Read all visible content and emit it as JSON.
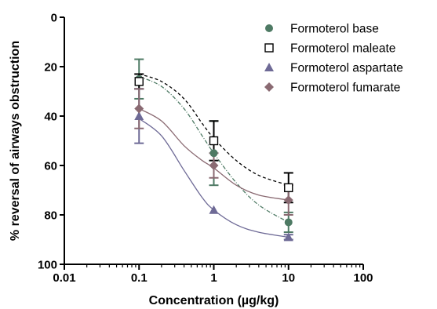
{
  "chart_data": {
    "type": "scatter",
    "title": "",
    "xlabel": "Concentration (µg/kg)",
    "ylabel": "% reversal of airways obstruction",
    "x_scale": "log",
    "xlim": [
      0.01,
      100
    ],
    "ylim": [
      0,
      100
    ],
    "y_inverted": true,
    "x_ticks": [
      "0.01",
      "0.1",
      "1",
      "10",
      "100"
    ],
    "y_ticks": [
      "0",
      "20",
      "40",
      "60",
      "80",
      "100"
    ],
    "legend_position": "top-right",
    "grid": false,
    "series": [
      {
        "name": "Formoterol base",
        "marker": "circle",
        "color": "#4e7a64",
        "line_style": "dash-dot",
        "x": [
          0.1,
          1,
          10
        ],
        "y": [
          25,
          55,
          83
        ],
        "error": [
          8,
          13,
          4
        ],
        "fit_y_at_x": [
          [
            0.1,
            24
          ],
          [
            0.2,
            28
          ],
          [
            0.4,
            37
          ],
          [
            0.7,
            48
          ],
          [
            1,
            55
          ],
          [
            2,
            67
          ],
          [
            4,
            76
          ],
          [
            10,
            83
          ]
        ]
      },
      {
        "name": "Formoterol maleate",
        "marker": "square",
        "color": "#000000",
        "line_style": "dashed",
        "x": [
          0.1,
          1,
          10
        ],
        "y": [
          26,
          50,
          69
        ],
        "error": [
          3,
          8,
          6
        ],
        "fit_y_at_x": [
          [
            0.1,
            23
          ],
          [
            0.2,
            26
          ],
          [
            0.4,
            33
          ],
          [
            0.7,
            43
          ],
          [
            1,
            49
          ],
          [
            2,
            58
          ],
          [
            4,
            64
          ],
          [
            10,
            68
          ]
        ]
      },
      {
        "name": "Formoterol aspartate",
        "marker": "triangle",
        "color": "#6e6a96",
        "line_style": "solid",
        "x": [
          0.1,
          1,
          10
        ],
        "y": [
          40,
          78,
          89
        ],
        "error": [
          11,
          0,
          1
        ],
        "fit_y_at_x": [
          [
            0.1,
            41
          ],
          [
            0.2,
            48
          ],
          [
            0.4,
            62
          ],
          [
            0.7,
            73
          ],
          [
            1,
            78
          ],
          [
            2,
            84
          ],
          [
            4,
            87
          ],
          [
            10,
            89
          ]
        ]
      },
      {
        "name": "Formoterol fumarate",
        "marker": "diamond",
        "color": "#8a6a72",
        "line_style": "solid",
        "x": [
          0.1,
          1,
          10
        ],
        "y": [
          37,
          60,
          74
        ],
        "error": [
          8,
          5,
          6
        ],
        "fit_y_at_x": [
          [
            0.1,
            37
          ],
          [
            0.2,
            42
          ],
          [
            0.4,
            52
          ],
          [
            0.7,
            58
          ],
          [
            1,
            61
          ],
          [
            2,
            68
          ],
          [
            4,
            72
          ],
          [
            10,
            74
          ]
        ]
      }
    ]
  }
}
